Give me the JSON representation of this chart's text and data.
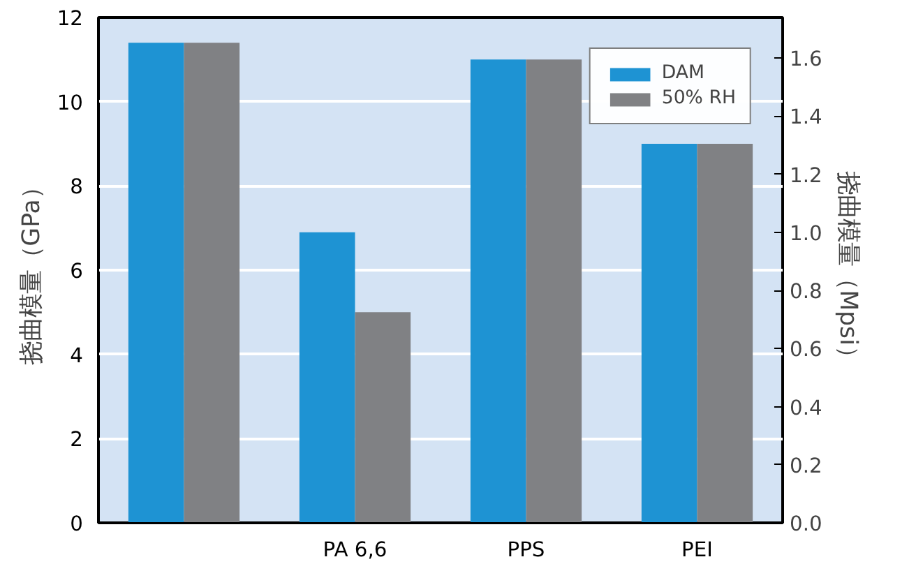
{
  "chart_data": {
    "type": "bar",
    "ylabel": "挠曲模量（GPa）",
    "y2label": "挠曲模量（Mpsi）",
    "categories": [
      null,
      "PA 6,6",
      "PPS",
      "PEI"
    ],
    "series": [
      {
        "name": "DAM",
        "color": "#1e93d3",
        "values": [
          11.4,
          6.9,
          11.0,
          9.0
        ]
      },
      {
        "name": "50% RH",
        "color": "#808184",
        "values": [
          11.4,
          5.0,
          11.0,
          9.0
        ]
      }
    ],
    "ylim": [
      0,
      12
    ],
    "yticks": [
      0,
      2,
      4,
      6,
      8,
      10,
      12
    ],
    "y2lim": [
      0,
      1.74
    ],
    "y2ticks": [
      {
        "value": 0,
        "label": "0.0"
      },
      0.2,
      0.4,
      0.6,
      0.8,
      {
        "value": 1,
        "label": "1.0"
      },
      1.2,
      1.4,
      1.6
    ],
    "grid": "y",
    "legend": "top right"
  }
}
